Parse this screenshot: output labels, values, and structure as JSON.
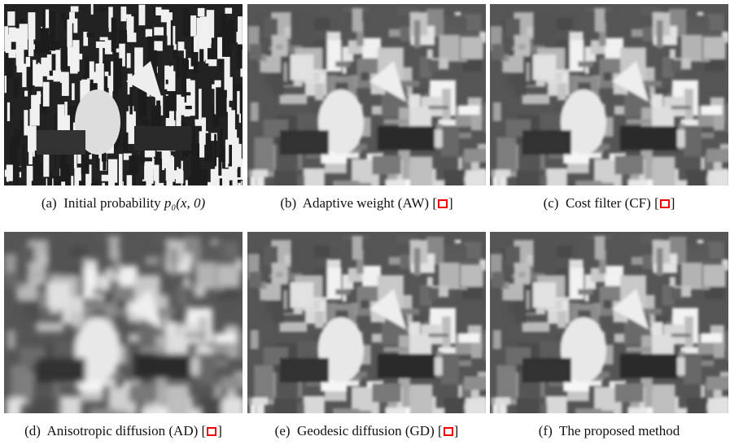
{
  "figure": {
    "citation_brackets": [
      "[",
      "]"
    ],
    "panels": [
      {
        "label": "(a)",
        "text": "Initial probability",
        "math": "p₀(x, 0)",
        "cited": false
      },
      {
        "label": "(b)",
        "text": "Adaptive weight (AW)",
        "math": null,
        "cited": true
      },
      {
        "label": "(c)",
        "text": "Cost filter (CF)",
        "math": null,
        "cited": true
      },
      {
        "label": "(d)",
        "text": "Anisotropic diffusion (AD)",
        "math": null,
        "cited": true
      },
      {
        "label": "(e)",
        "text": "Geodesic diffusion (GD)",
        "math": null,
        "cited": true
      },
      {
        "label": "(f)",
        "text": "The proposed method",
        "math": null,
        "cited": false
      }
    ]
  }
}
